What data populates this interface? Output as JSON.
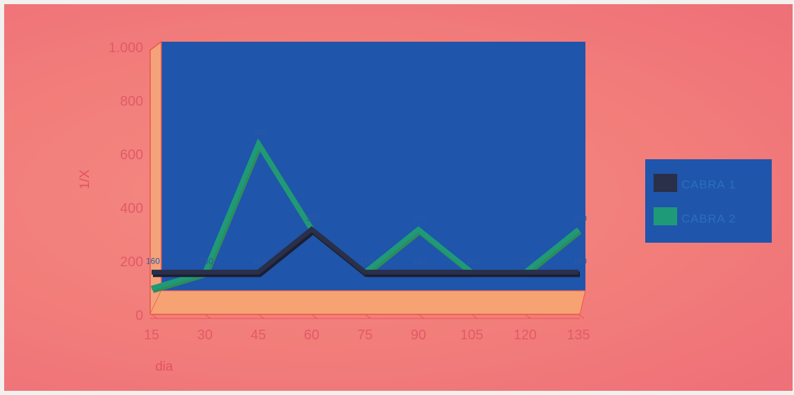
{
  "chart_data": {
    "type": "line",
    "title": "",
    "xlabel": "dia",
    "ylabel": "1/X",
    "x": [
      15,
      30,
      45,
      60,
      75,
      90,
      105,
      120,
      135
    ],
    "xtick_labels": [
      "15",
      "30",
      "45",
      "60",
      "75",
      "90",
      "105",
      "120",
      "135"
    ],
    "ylim": [
      0,
      1000
    ],
    "ytick_values": [
      0,
      200,
      400,
      600,
      800,
      1000
    ],
    "ytick_labels": [
      "0",
      "200",
      "400",
      "600",
      "800",
      "1.000"
    ],
    "series": [
      {
        "name": "CABRA 1",
        "color": "#2a2f4a",
        "values": [
          160,
          160,
          160,
          320,
          160,
          160,
          160,
          160,
          160
        ],
        "labels": [
          "160",
          "160",
          "160",
          "",
          "160",
          "160",
          "160",
          "160",
          "160"
        ]
      },
      {
        "name": "CABRA 2",
        "color": "#1f9a78",
        "values": [
          100,
          160,
          640,
          320,
          160,
          320,
          160,
          160,
          320
        ],
        "labels": [
          "",
          "",
          "640",
          "320",
          "",
          "320",
          "",
          "",
          "320"
        ]
      }
    ],
    "legend_position": "right",
    "plot_background": "#1f55aa",
    "floor_color": "#f7a272",
    "axis_color": "#e8564f"
  }
}
